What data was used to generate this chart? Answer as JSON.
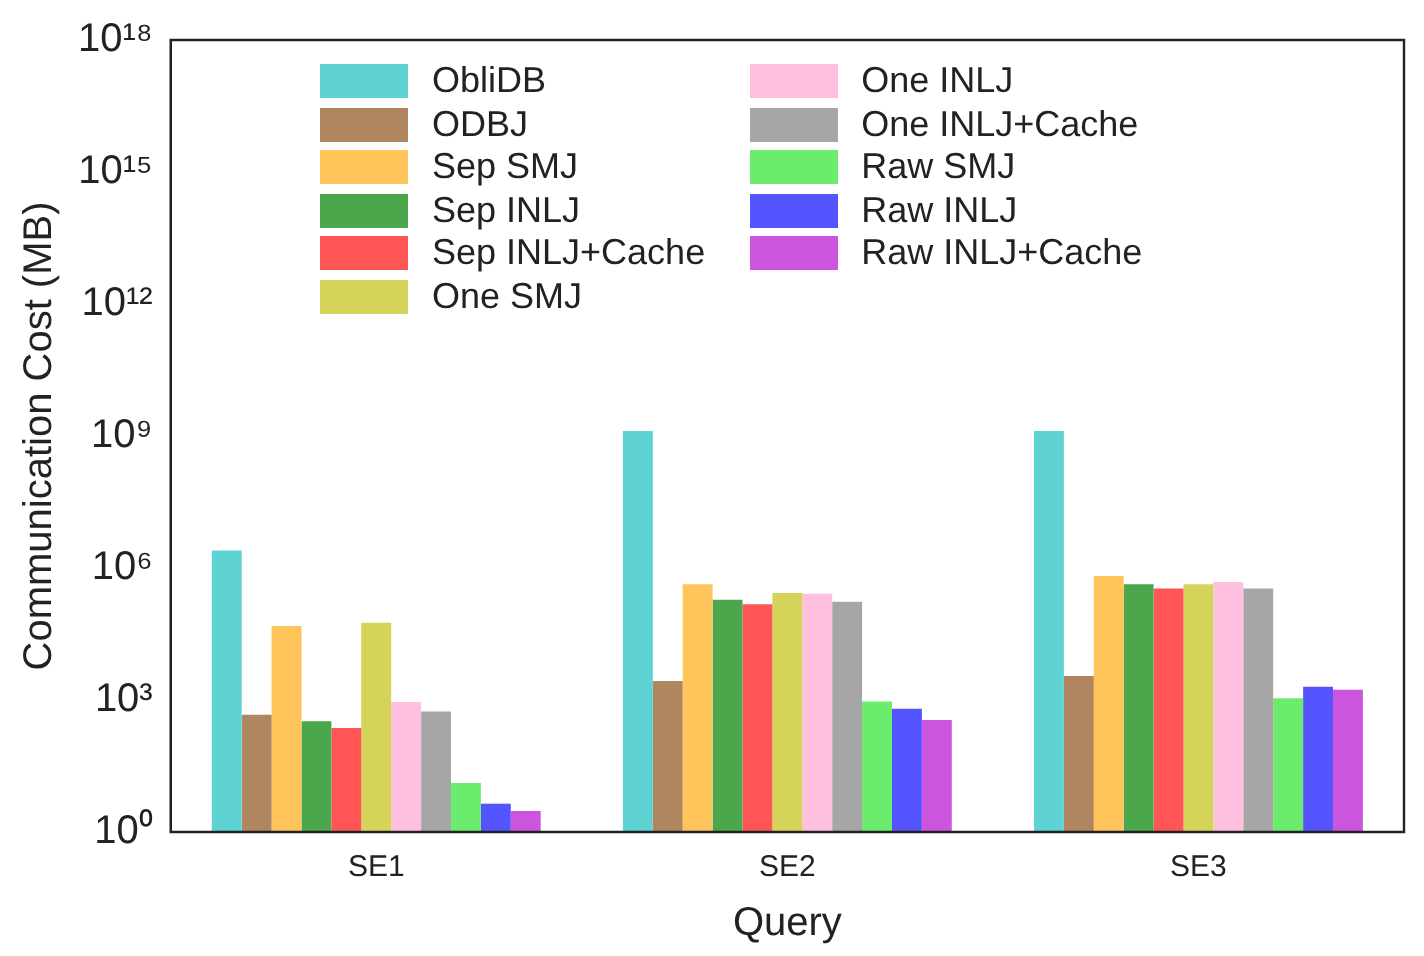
{
  "chart_data": {
    "type": "bar",
    "xlabel": "Query",
    "ylabel": "Communication Cost (MB)",
    "categories": [
      "SE1",
      "SE2",
      "SE3"
    ],
    "log": true,
    "ylim": [
      1,
      1e+18
    ],
    "yticks": [
      {
        "value": 1,
        "label": "10⁰"
      },
      {
        "value": 1000,
        "label": "10³"
      },
      {
        "value": 1000000.0,
        "label": "10⁶"
      },
      {
        "value": 1000000000.0,
        "label": "10⁹"
      },
      {
        "value": 1000000000000.0,
        "label": "10¹²"
      },
      {
        "value": 1000000000000000.0,
        "label": "10¹⁵"
      },
      {
        "value": 1e+18,
        "label": "10¹⁸"
      }
    ],
    "grid": false,
    "legend": "top",
    "series": [
      {
        "name": "ObliDB",
        "color": "#5fd3d3",
        "values": [
          2500000,
          1300000000,
          1300000000
        ]
      },
      {
        "name": "ODBJ",
        "color": "#b08660",
        "values": [
          460,
          2700,
          3500
        ]
      },
      {
        "name": "Sep SMJ",
        "color": "#ffc45a",
        "values": [
          48000,
          430000,
          660000
        ]
      },
      {
        "name": "Sep INLJ",
        "color": "#4ca64c",
        "values": [
          330,
          190000,
          430000
        ]
      },
      {
        "name": "Sep INLJ+Cache",
        "color": "#ff5555",
        "values": [
          230,
          150000,
          340000
        ]
      },
      {
        "name": "One SMJ",
        "color": "#d4d45a",
        "values": [
          57000,
          270000,
          430000
        ]
      },
      {
        "name": "One INLJ",
        "color": "#ffbfdf",
        "values": [
          900,
          260000,
          480000
        ]
      },
      {
        "name": "One INLJ+Cache",
        "color": "#a6a6a6",
        "values": [
          550,
          170000,
          340000
        ]
      },
      {
        "name": "Raw SMJ",
        "color": "#6cec6c",
        "values": [
          13,
          930,
          1100
        ]
      },
      {
        "name": "Raw INLJ",
        "color": "#5555ff",
        "values": [
          4.4,
          630,
          2000
        ]
      },
      {
        "name": "Raw INLJ+Cache",
        "color": "#cc55dd",
        "values": [
          3,
          350,
          1700
        ]
      }
    ]
  }
}
